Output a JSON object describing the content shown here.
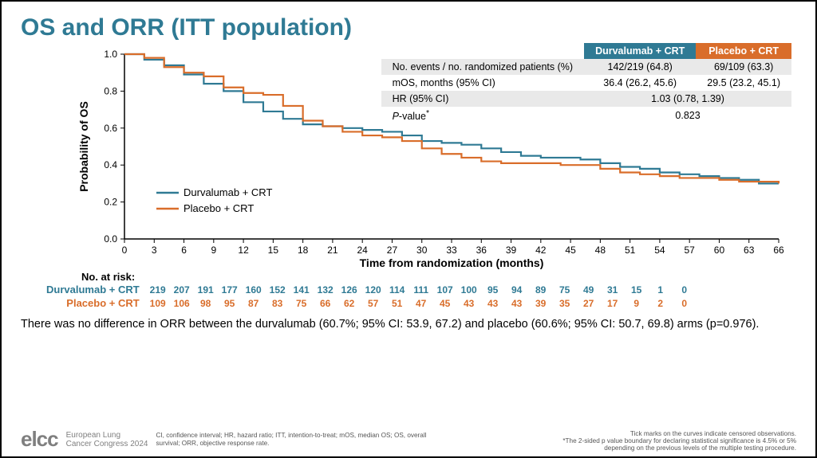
{
  "title": "OS and ORR (ITT population)",
  "title_color": "#2f7a94",
  "colors": {
    "durva": "#2f7a94",
    "placebo": "#d96d2a",
    "grid": "#dddddd",
    "axis": "#000000",
    "stats_hdr_bg_a": "#2f7a94",
    "stats_hdr_bg_b": "#d96d2a"
  },
  "chart": {
    "type": "kaplan-meier",
    "ylim": [
      0.0,
      1.0
    ],
    "ytick_step": 0.2,
    "xlim": [
      0,
      66
    ],
    "xtick_step": 3,
    "ylabel": "Probability of OS",
    "xlabel": "Time from randomization (months)",
    "label_fontsize": 14,
    "tick_fontsize": 12,
    "line_width": 2.2,
    "series": [
      {
        "name": "Durvalumab + CRT",
        "color": "#2f7a94",
        "points": [
          [
            0,
            1.0
          ],
          [
            2,
            0.97
          ],
          [
            4,
            0.94
          ],
          [
            6,
            0.89
          ],
          [
            8,
            0.84
          ],
          [
            10,
            0.8
          ],
          [
            12,
            0.74
          ],
          [
            14,
            0.69
          ],
          [
            16,
            0.65
          ],
          [
            18,
            0.62
          ],
          [
            20,
            0.61
          ],
          [
            22,
            0.6
          ],
          [
            24,
            0.59
          ],
          [
            26,
            0.58
          ],
          [
            28,
            0.56
          ],
          [
            30,
            0.53
          ],
          [
            32,
            0.52
          ],
          [
            34,
            0.51
          ],
          [
            36,
            0.49
          ],
          [
            38,
            0.47
          ],
          [
            40,
            0.45
          ],
          [
            42,
            0.44
          ],
          [
            44,
            0.44
          ],
          [
            46,
            0.43
          ],
          [
            48,
            0.41
          ],
          [
            50,
            0.39
          ],
          [
            52,
            0.38
          ],
          [
            54,
            0.36
          ],
          [
            56,
            0.35
          ],
          [
            58,
            0.34
          ],
          [
            60,
            0.33
          ],
          [
            62,
            0.32
          ],
          [
            64,
            0.3
          ],
          [
            66,
            0.3
          ]
        ]
      },
      {
        "name": "Placebo + CRT",
        "color": "#d96d2a",
        "points": [
          [
            0,
            1.0
          ],
          [
            2,
            0.98
          ],
          [
            4,
            0.93
          ],
          [
            6,
            0.9
          ],
          [
            8,
            0.88
          ],
          [
            10,
            0.82
          ],
          [
            12,
            0.79
          ],
          [
            14,
            0.78
          ],
          [
            16,
            0.72
          ],
          [
            18,
            0.64
          ],
          [
            20,
            0.61
          ],
          [
            22,
            0.58
          ],
          [
            24,
            0.56
          ],
          [
            26,
            0.55
          ],
          [
            28,
            0.53
          ],
          [
            30,
            0.49
          ],
          [
            32,
            0.46
          ],
          [
            34,
            0.44
          ],
          [
            36,
            0.42
          ],
          [
            38,
            0.41
          ],
          [
            40,
            0.41
          ],
          [
            42,
            0.41
          ],
          [
            44,
            0.4
          ],
          [
            46,
            0.4
          ],
          [
            48,
            0.38
          ],
          [
            50,
            0.36
          ],
          [
            52,
            0.35
          ],
          [
            54,
            0.34
          ],
          [
            56,
            0.33
          ],
          [
            58,
            0.33
          ],
          [
            60,
            0.32
          ],
          [
            62,
            0.31
          ],
          [
            64,
            0.31
          ],
          [
            66,
            0.3
          ]
        ]
      }
    ],
    "legend_position": "inside-lower-left"
  },
  "stats_table": {
    "col_a": "Durvalumab + CRT",
    "col_b": "Placebo + CRT",
    "rows": [
      {
        "label": "No. events / no. randomized patients (%)",
        "a": "142/219 (64.8)",
        "b": "69/109 (63.3)"
      },
      {
        "label": "mOS, months (95% CI)",
        "a": "36.4 (26.2, 45.6)",
        "b": "29.5 (23.2, 45.1)"
      },
      {
        "label": "HR (95% CI)",
        "span": "1.03 (0.78, 1.39)"
      },
      {
        "label": "P-value*",
        "span": "0.823",
        "label_html": true
      }
    ]
  },
  "risk_title": "No. at risk:",
  "risk_table": {
    "times": [
      0,
      3,
      6,
      9,
      12,
      15,
      18,
      21,
      24,
      27,
      30,
      33,
      36,
      39,
      42,
      45,
      48,
      51,
      54,
      57,
      60,
      63,
      66
    ],
    "series": [
      {
        "name": "Durvalumab + CRT",
        "color": "#2f7a94",
        "values": [
          219,
          207,
          191,
          177,
          160,
          152,
          141,
          132,
          126,
          120,
          114,
          111,
          107,
          100,
          95,
          94,
          89,
          75,
          49,
          31,
          15,
          1,
          0
        ]
      },
      {
        "name": "Placebo + CRT",
        "color": "#d96d2a",
        "values": [
          109,
          106,
          98,
          95,
          87,
          83,
          75,
          66,
          62,
          57,
          51,
          47,
          45,
          43,
          43,
          43,
          39,
          35,
          27,
          17,
          9,
          2,
          0
        ]
      }
    ]
  },
  "bottom_text": "There was no difference in ORR between the durvalumab (60.7%; 95% CI: 53.9, 67.2) and placebo (60.6%; 95% CI: 50.7, 69.8) arms (p=0.976).",
  "footer": {
    "logo": "elcc",
    "logo_sub1": "European Lung",
    "logo_sub2": "Cancer Congress 2024",
    "abbrev": "CI, confidence interval; HR, hazard ratio; ITT, intention-to-treat; mOS, median OS; OS, overall survival; ORR, objective response rate.",
    "footnote1": "Tick marks on the curves indicate censored observations.",
    "footnote2": "*The 2-sided p value boundary for declaring statistical significance is 4.5% or 5% depending on the previous levels of the multiple testing procedure."
  }
}
